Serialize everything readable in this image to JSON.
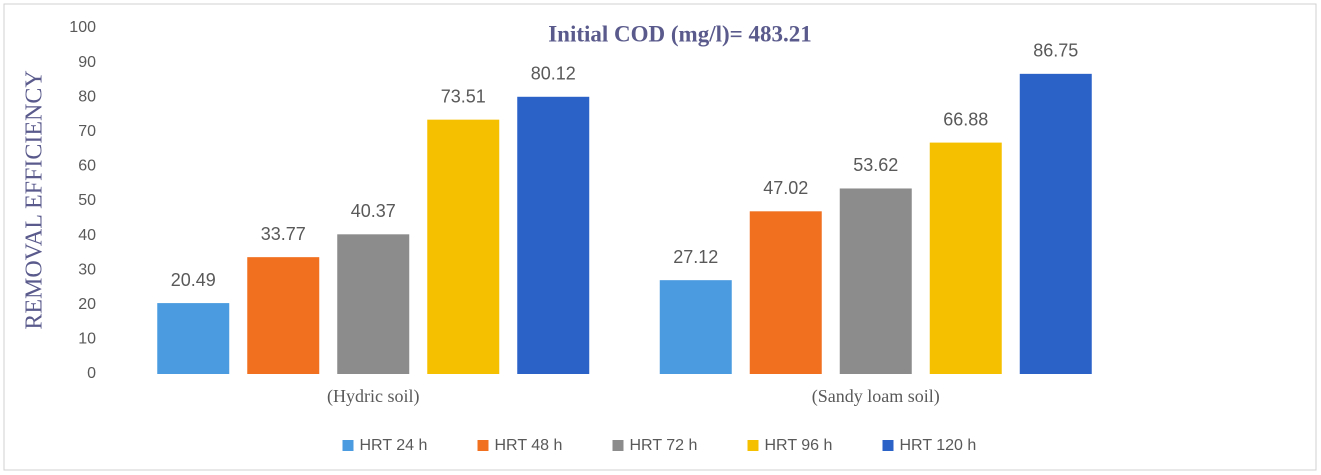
{
  "chart_data": {
    "type": "bar",
    "title": "Initial COD (mg/l)= 483.21",
    "y_label": "REMOVAL EFFICIENCY",
    "categories": [
      "(Hydric soil)",
      "(Sandy loam soil)"
    ],
    "series": [
      {
        "name": "HRT 24 h",
        "color": "#4a9be0",
        "values": [
          20.49,
          27.12
        ]
      },
      {
        "name": "HRT 48 h",
        "color": "#f07020",
        "values": [
          33.77,
          47.02
        ]
      },
      {
        "name": "HRT 72 h",
        "color": "#8c8c8c",
        "values": [
          40.37,
          53.62
        ]
      },
      {
        "name": "HRT 96 h",
        "color": "#f5c000",
        "values": [
          73.51,
          66.88
        ]
      },
      {
        "name": "HRT 120 h",
        "color": "#2a62c8",
        "values": [
          80.12,
          86.75
        ]
      }
    ],
    "ylim": [
      0,
      100
    ],
    "yticks": [
      0,
      10,
      20,
      30,
      40,
      50,
      60,
      70,
      80,
      90,
      100
    ],
    "legend": "bottom"
  }
}
